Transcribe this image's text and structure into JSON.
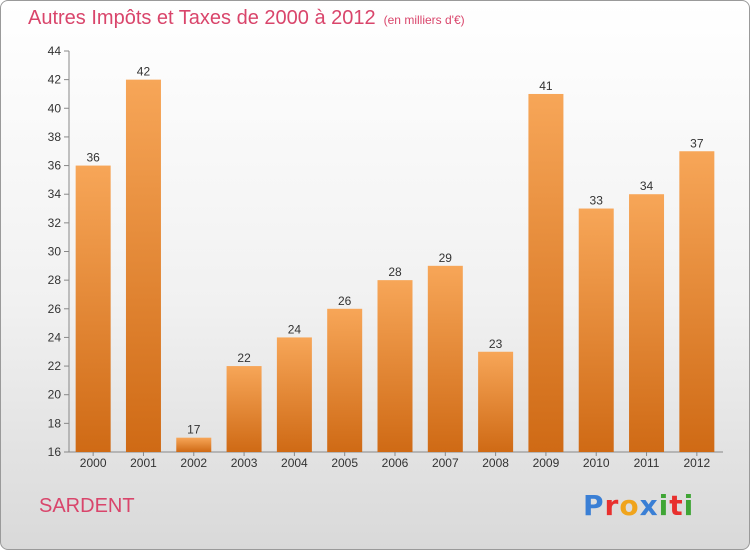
{
  "header": {
    "title": "Autres Impôts et Taxes de 2000 à 2012",
    "subtitle": "(en milliers d'€)"
  },
  "commune": "SARDENT",
  "logo": {
    "text": "Proxiti",
    "colors": [
      "#3a7fd5",
      "#e8302e",
      "#f0a41c",
      "#3a7fd5",
      "#3fa535",
      "#e8302e",
      "#3fa535"
    ]
  },
  "colors": {
    "bar_top": "#f7a658",
    "bar_bottom": "#cf6a15",
    "text": "#333333",
    "title": "#d9456b"
  },
  "chart_data": {
    "type": "bar",
    "categories": [
      "2000",
      "2001",
      "2002",
      "2003",
      "2004",
      "2005",
      "2006",
      "2007",
      "2008",
      "2009",
      "2010",
      "2011",
      "2012"
    ],
    "values": [
      36,
      42,
      17,
      22,
      24,
      26,
      28,
      29,
      23,
      41,
      33,
      34,
      37
    ],
    "ylim": [
      16,
      44
    ],
    "yticks": [
      16,
      18,
      20,
      22,
      24,
      26,
      28,
      30,
      32,
      34,
      36,
      38,
      40,
      42,
      44
    ],
    "grid": false
  }
}
